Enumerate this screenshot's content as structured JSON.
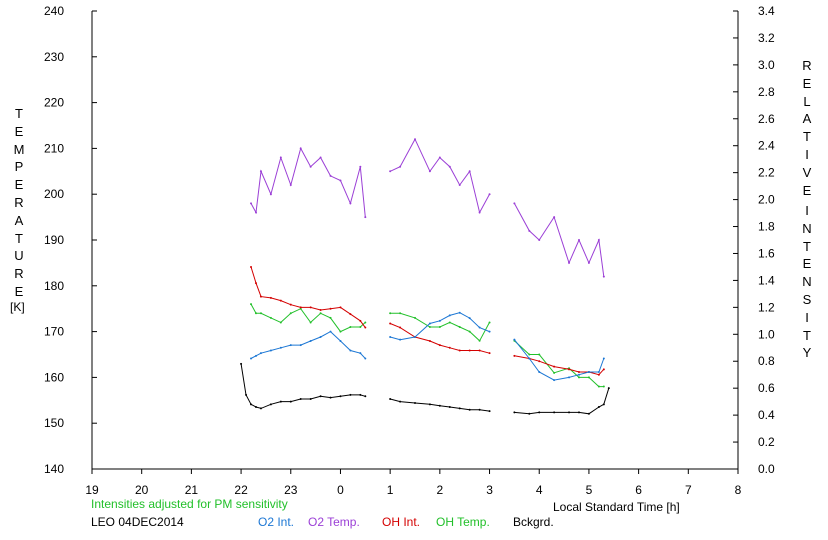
{
  "colors": {
    "o2_int": "#1c77d4",
    "o2_temp": "#9b3fd6",
    "oh_int": "#d40000",
    "oh_temp": "#22c02a",
    "background": "#000000",
    "note": "#22c02a",
    "text": "#000000"
  },
  "labels": {
    "left_axis_title_letters": [
      "T",
      "E",
      "M",
      "P",
      "E",
      "R",
      "A",
      "T",
      "U",
      "R",
      "E"
    ],
    "left_axis_unit": "[K]",
    "right_axis_title_letters_1": [
      "R",
      "E",
      "L",
      "A",
      "T",
      "I",
      "V",
      "E"
    ],
    "right_axis_title_letters_2": [
      "I",
      "N",
      "T",
      "E",
      "N",
      "S",
      "I",
      "T",
      "Y"
    ],
    "x_axis_title": "Local Standard Time [h]",
    "note": "Intensities adjusted for PM sensitivity",
    "station_date": "LEO 04DEC2014",
    "legend": [
      "O2 Int.",
      "O2 Temp.",
      "OH Int.",
      "OH Temp.",
      "Bckgrd."
    ]
  },
  "chart_data": {
    "type": "line",
    "station": "LEO",
    "date": "04DEC2014",
    "x_axis": {
      "label": "Local Standard Time [h]",
      "range": [
        19,
        32
      ],
      "ticks": [
        19,
        20,
        21,
        22,
        23,
        0,
        1,
        2,
        3,
        4,
        5,
        6,
        7,
        8
      ]
    },
    "y_left": {
      "label": "TEMPERATURE [K]",
      "range": [
        140,
        240
      ],
      "ticks": [
        140,
        150,
        160,
        170,
        180,
        190,
        200,
        210,
        220,
        230,
        240
      ]
    },
    "y_right": {
      "label": "RELATIVE INTENSITY",
      "range": [
        0.0,
        3.4
      ],
      "ticks": [
        "0.0",
        "0.2",
        "0.4",
        "0.6",
        "0.8",
        "1.0",
        "1.2",
        "1.4",
        "1.6",
        "1.8",
        "2.0",
        "2.2",
        "2.4",
        "2.6",
        "2.8",
        "3.0",
        "3.2",
        "3.4"
      ]
    },
    "series": [
      {
        "name": "O2 Temp.",
        "axis": "left",
        "color": "#9b3fd6",
        "x": [
          22.2,
          22.3,
          22.4,
          22.6,
          22.8,
          23.0,
          23.2,
          23.4,
          23.6,
          23.8,
          24.0,
          24.2,
          24.4,
          24.5,
          25.0,
          25.2,
          25.5,
          25.8,
          26.0,
          26.2,
          26.4,
          26.6,
          26.8,
          27.0,
          27.5,
          27.8,
          28.0,
          28.3,
          28.6,
          28.8,
          29.0,
          29.2,
          29.3
        ],
        "y": [
          198,
          196,
          205,
          200,
          208,
          202,
          210,
          206,
          208,
          204,
          203,
          198,
          206,
          195,
          205,
          206,
          212,
          205,
          208,
          206,
          202,
          205,
          196,
          200,
          198,
          192,
          190,
          195,
          185,
          190,
          185,
          190,
          182
        ]
      },
      {
        "name": "OH Temp.",
        "axis": "left",
        "color": "#22c02a",
        "x": [
          22.2,
          22.3,
          22.4,
          22.6,
          22.8,
          23.0,
          23.2,
          23.4,
          23.6,
          23.8,
          24.0,
          24.2,
          24.4,
          24.5,
          25.0,
          25.2,
          25.5,
          25.8,
          26.0,
          26.2,
          26.4,
          26.6,
          26.8,
          27.0,
          27.5,
          27.8,
          28.0,
          28.3,
          28.6,
          28.8,
          29.0,
          29.2,
          29.3
        ],
        "y": [
          176,
          174,
          174,
          173,
          172,
          174,
          175,
          172,
          174,
          173,
          170,
          171,
          171,
          172,
          174,
          174,
          173,
          171,
          171,
          172,
          171,
          170,
          168,
          172,
          168,
          165,
          165,
          161,
          162,
          160,
          160,
          158,
          158
        ]
      },
      {
        "name": "OH Int.",
        "axis": "right",
        "color": "#d40000",
        "x": [
          22.2,
          22.3,
          22.4,
          22.6,
          22.8,
          23.0,
          23.2,
          23.4,
          23.6,
          23.8,
          24.0,
          24.2,
          24.4,
          24.5,
          25.0,
          25.2,
          25.5,
          25.8,
          26.0,
          26.2,
          26.4,
          26.6,
          26.8,
          27.0,
          27.5,
          27.8,
          28.0,
          28.3,
          28.6,
          28.8,
          29.0,
          29.2,
          29.3
        ],
        "y": [
          1.5,
          1.38,
          1.28,
          1.27,
          1.25,
          1.22,
          1.2,
          1.2,
          1.18,
          1.19,
          1.2,
          1.15,
          1.1,
          1.05,
          1.08,
          1.05,
          0.98,
          0.95,
          0.92,
          0.9,
          0.88,
          0.88,
          0.88,
          0.86,
          0.84,
          0.82,
          0.8,
          0.76,
          0.74,
          0.72,
          0.72,
          0.7,
          0.74
        ]
      },
      {
        "name": "O2 Int.",
        "axis": "right",
        "color": "#1c77d4",
        "x": [
          22.2,
          22.3,
          22.4,
          22.6,
          22.8,
          23.0,
          23.2,
          23.4,
          23.6,
          23.8,
          24.0,
          24.2,
          24.4,
          24.5,
          25.0,
          25.2,
          25.5,
          25.8,
          26.0,
          26.2,
          26.4,
          26.6,
          26.8,
          27.0,
          27.5,
          27.8,
          28.0,
          28.3,
          28.6,
          28.8,
          29.0,
          29.2,
          29.3
        ],
        "y": [
          0.82,
          0.84,
          0.86,
          0.88,
          0.9,
          0.92,
          0.92,
          0.95,
          0.98,
          1.02,
          0.95,
          0.88,
          0.86,
          0.82,
          0.98,
          0.96,
          0.98,
          1.08,
          1.1,
          1.14,
          1.16,
          1.12,
          1.05,
          1.02,
          0.96,
          0.82,
          0.72,
          0.66,
          0.68,
          0.7,
          0.72,
          0.72,
          0.82
        ]
      },
      {
        "name": "Bckgrd.",
        "axis": "right",
        "color": "#000000",
        "x": [
          22.0,
          22.1,
          22.2,
          22.3,
          22.4,
          22.6,
          22.8,
          23.0,
          23.2,
          23.4,
          23.6,
          23.8,
          24.0,
          24.2,
          24.4,
          24.5,
          25.0,
          25.2,
          25.5,
          25.8,
          26.0,
          26.2,
          26.4,
          26.6,
          26.8,
          27.0,
          27.5,
          27.8,
          28.0,
          28.3,
          28.6,
          28.8,
          29.0,
          29.2,
          29.3,
          29.4
        ],
        "y": [
          0.78,
          0.55,
          0.48,
          0.46,
          0.45,
          0.48,
          0.5,
          0.5,
          0.52,
          0.52,
          0.54,
          0.53,
          0.54,
          0.55,
          0.55,
          0.54,
          0.52,
          0.5,
          0.49,
          0.48,
          0.47,
          0.46,
          0.45,
          0.44,
          0.44,
          0.43,
          0.42,
          0.41,
          0.42,
          0.42,
          0.42,
          0.42,
          0.41,
          0.46,
          0.48,
          0.6
        ]
      }
    ]
  }
}
